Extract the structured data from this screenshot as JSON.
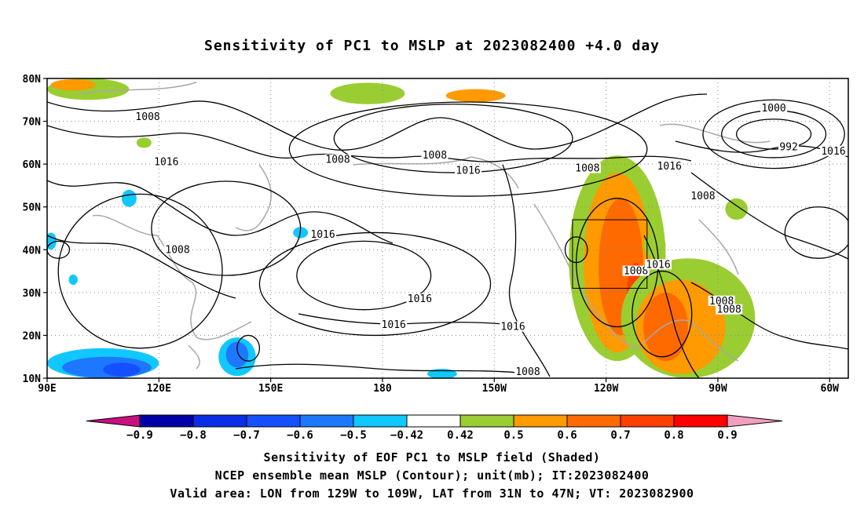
{
  "title": "Sensitivity of PC1 to MSLP at 2023082400 +4.0 day",
  "captions": [
    "Sensitivity of EOF PC1 to MSLP field (Shaded)",
    "NCEP ensemble mean MSLP (Contour); unit(mb); IT:2023082400",
    "Valid area: LON from 129W to 109W, LAT from 31N to 47N; VT: 2023082900"
  ],
  "map": {
    "lon_range": [
      90,
      305
    ],
    "lat_range": [
      10,
      80
    ],
    "lat_ticks": [
      {
        "lat": 80,
        "label": "80N"
      },
      {
        "lat": 70,
        "label": "70N"
      },
      {
        "lat": 60,
        "label": "60N"
      },
      {
        "lat": 50,
        "label": "50N"
      },
      {
        "lat": 40,
        "label": "40N"
      },
      {
        "lat": 30,
        "label": "30N"
      },
      {
        "lat": 20,
        "label": "20N"
      },
      {
        "lat": 10,
        "label": "10N"
      }
    ],
    "lon_ticks": [
      {
        "lon": 90,
        "label": "90E"
      },
      {
        "lon": 120,
        "label": "120E"
      },
      {
        "lon": 150,
        "label": "150E"
      },
      {
        "lon": 180,
        "label": "180"
      },
      {
        "lon": 210,
        "label": "150W"
      },
      {
        "lon": 240,
        "label": "120W"
      },
      {
        "lon": 270,
        "label": "90W"
      },
      {
        "lon": 300,
        "label": "60W"
      }
    ],
    "valid_box": {
      "lon1": 231,
      "lon2": 251,
      "lat1": 31,
      "lat2": 47
    },
    "isobar_labels": [
      {
        "text": "1008",
        "lon": 117,
        "lat": 71
      },
      {
        "text": "1016",
        "lon": 122,
        "lat": 60.5
      },
      {
        "text": "1008",
        "lon": 125,
        "lat": 40
      },
      {
        "text": "1016",
        "lon": 164,
        "lat": 43.5
      },
      {
        "text": "1008",
        "lon": 168,
        "lat": 61
      },
      {
        "text": "1008",
        "lon": 194,
        "lat": 62
      },
      {
        "text": "1016",
        "lon": 203,
        "lat": 58.5
      },
      {
        "text": "1016",
        "lon": 190,
        "lat": 28.5
      },
      {
        "text": "1016",
        "lon": 183,
        "lat": 22.5
      },
      {
        "text": "1016",
        "lon": 215,
        "lat": 22
      },
      {
        "text": "1008",
        "lon": 219,
        "lat": 11.5
      },
      {
        "text": "1008",
        "lon": 235,
        "lat": 59
      },
      {
        "text": "1016",
        "lon": 257,
        "lat": 59.5
      },
      {
        "text": "1008",
        "lon": 248,
        "lat": 35
      },
      {
        "text": "1016",
        "lon": 254,
        "lat": 36.5
      },
      {
        "text": "1008",
        "lon": 266,
        "lat": 52.5
      },
      {
        "text": "1000",
        "lon": 285,
        "lat": 73
      },
      {
        "text": "992",
        "lon": 289,
        "lat": 64
      },
      {
        "text": "1016",
        "lon": 301,
        "lat": 63
      },
      {
        "text": "1008",
        "lon": 271,
        "lat": 28
      },
      {
        "text": "1008",
        "lon": 273,
        "lat": 26
      }
    ],
    "shaded_regions": [
      {
        "level": 0.5,
        "lon": 243,
        "lat": 38,
        "rlon": 13,
        "rlat": 24
      },
      {
        "level": 0.6,
        "lon": 243,
        "lat": 37,
        "rlon": 9,
        "rlat": 21
      },
      {
        "level": 0.7,
        "lon": 244,
        "lat": 36,
        "rlon": 6,
        "rlat": 16
      },
      {
        "level": 0.8,
        "lon": 248,
        "lat": 28,
        "rlon": 2.5,
        "rlat": 9
      },
      {
        "level": 0.5,
        "lon": 262,
        "lat": 24,
        "rlon": 18,
        "rlat": 14
      },
      {
        "level": 0.6,
        "lon": 260,
        "lat": 22,
        "rlon": 12,
        "rlat": 11
      },
      {
        "level": 0.7,
        "lon": 256,
        "lat": 22,
        "rlon": 6,
        "rlat": 8
      },
      {
        "level": 0.5,
        "lon": 176,
        "lat": 76.5,
        "rlon": 10,
        "rlat": 2.5
      },
      {
        "level": 0.6,
        "lon": 205,
        "lat": 76,
        "rlon": 8,
        "rlat": 1.5
      },
      {
        "level": 0.5,
        "lon": 101,
        "lat": 77.5,
        "rlon": 11,
        "rlat": 2.5
      },
      {
        "level": 0.6,
        "lon": 97,
        "lat": 78.5,
        "rlon": 6,
        "rlat": 1.3
      },
      {
        "level": 0.5,
        "lon": 275,
        "lat": 49.5,
        "rlon": 3,
        "rlat": 2.5
      },
      {
        "level": 0.5,
        "lon": 116,
        "lat": 65,
        "rlon": 2,
        "rlat": 1.2
      },
      {
        "level": 0.5,
        "lon": 253,
        "lat": 41,
        "rlon": 3,
        "rlat": 3
      },
      {
        "level": -0.5,
        "lon": 105,
        "lat": 13.5,
        "rlon": 15,
        "rlat": 3.5
      },
      {
        "level": -0.6,
        "lon": 106,
        "lat": 12.5,
        "rlon": 12,
        "rlat": 2.5
      },
      {
        "level": -0.7,
        "lon": 110,
        "lat": 12,
        "rlon": 5,
        "rlat": 1.6
      },
      {
        "level": -0.5,
        "lon": 141,
        "lat": 15,
        "rlon": 5,
        "rlat": 4.5
      },
      {
        "level": -0.6,
        "lon": 141,
        "lat": 15.5,
        "rlon": 3,
        "rlat": 3
      },
      {
        "level": -0.5,
        "lon": 196,
        "lat": 11,
        "rlon": 4,
        "rlat": 1.2
      },
      {
        "level": -0.5,
        "lon": 112,
        "lat": 52,
        "rlon": 2,
        "rlat": 2
      },
      {
        "level": -0.5,
        "lon": 158,
        "lat": 44,
        "rlon": 2,
        "rlat": 1.3
      },
      {
        "level": -0.5,
        "lon": 91,
        "lat": 42,
        "rlon": 1.5,
        "rlat": 2
      },
      {
        "level": -0.5,
        "lon": 97,
        "lat": 33,
        "rlon": 1.2,
        "rlat": 1.2
      }
    ],
    "isobars": [
      {
        "lon": 199,
        "lat": 66,
        "rlon": 32,
        "rlat": 8
      },
      {
        "lon": 203,
        "lat": 63.5,
        "rlon": 48,
        "rlat": 11
      },
      {
        "lon": 285,
        "lat": 67,
        "rlon": 10,
        "rlat": 3.5
      },
      {
        "lon": 285,
        "lat": 67,
        "rlon": 14,
        "rlat": 5.5
      },
      {
        "lon": 285,
        "lat": 67,
        "rlon": 19,
        "rlat": 8
      },
      {
        "lon": 175,
        "lat": 34,
        "rlon": 18,
        "rlat": 8
      },
      {
        "lon": 178,
        "lat": 32,
        "rlon": 31,
        "rlat": 12
      },
      {
        "lon": 138,
        "lat": 45,
        "rlon": 20,
        "rlat": 11
      },
      {
        "lon": 243,
        "lat": 37,
        "rlon": 11,
        "rlat": 15
      },
      {
        "lon": 255,
        "lat": 25,
        "rlon": 8,
        "rlat": 10
      },
      {
        "lon": 115,
        "lat": 35,
        "rlon": 22,
        "rlat": 18
      },
      {
        "lon": 232,
        "lat": 40,
        "rlon": 3,
        "rlat": 3
      },
      {
        "lon": 297,
        "lat": 44,
        "rlon": 9,
        "rlat": 6
      },
      {
        "lon": 93,
        "lat": 40,
        "rlon": 3,
        "rlat": 2
      },
      {
        "lon": 144,
        "lat": 17,
        "rlon": 3,
        "rlat": 3
      }
    ]
  },
  "colorbar": {
    "labels": [
      "-0.9",
      "-0.8",
      "-0.7",
      "-0.6",
      "-0.5",
      "-0.42",
      "0.42",
      "0.5",
      "0.6",
      "0.7",
      "0.8",
      "0.9"
    ],
    "low_arrow_color": "#c6117f",
    "high_arrow_color": "#f29ebf",
    "colors": [
      "#0000a8",
      "#0a2ee6",
      "#1450ff",
      "#1e78ff",
      "#10c8ff",
      "#ffffff",
      "#9acd32",
      "#ff9a00",
      "#ff6a00",
      "#ff4000",
      "#ff0000"
    ]
  },
  "level_colors": {
    "-0.9": "#0000a8",
    "-0.8": "#0a2ee6",
    "-0.7": "#1450ff",
    "-0.6": "#1e78ff",
    "-0.5": "#10c8ff",
    "0.5": "#9acd32",
    "0.6": "#ff9a00",
    "0.7": "#ff6a00",
    "0.8": "#ff4000",
    "0.9": "#ff0000"
  }
}
